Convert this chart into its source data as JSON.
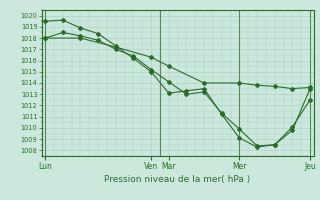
{
  "xlabel": "Pression niveau de la mer( hPa )",
  "bg_color": "#cce8dc",
  "grid_color": "#aad4c4",
  "line_color": "#2d6b2d",
  "vline_color": "#5a8a5a",
  "ylim": [
    1007.5,
    1020.5
  ],
  "xlim": [
    -0.1,
    7.6
  ],
  "yticks": [
    1008,
    1009,
    1010,
    1011,
    1012,
    1013,
    1014,
    1015,
    1016,
    1017,
    1018,
    1019,
    1020
  ],
  "day_labels": [
    "Lun",
    "Ven",
    "Mar",
    "Mer",
    "Jeu"
  ],
  "day_positions": [
    0.0,
    3.0,
    3.5,
    5.5,
    7.5
  ],
  "vlines": [
    0.0,
    3.25,
    5.5,
    7.5
  ],
  "series1_x": [
    0.0,
    0.5,
    1.0,
    1.5,
    2.0,
    2.5,
    3.0,
    3.5,
    4.0,
    4.5,
    5.0,
    5.5,
    6.0,
    6.5,
    7.0,
    7.5
  ],
  "series1_y": [
    1018.0,
    1018.5,
    1018.2,
    1017.8,
    1017.0,
    1016.4,
    1015.2,
    1014.1,
    1013.0,
    1013.2,
    1011.3,
    1009.9,
    1008.4,
    1008.5,
    1009.8,
    1013.5
  ],
  "series2_x": [
    0.0,
    0.5,
    1.0,
    1.5,
    2.0,
    2.5,
    3.0,
    3.5,
    4.0,
    4.5,
    5.0,
    5.5,
    6.0,
    6.5,
    7.0,
    7.5
  ],
  "series2_y": [
    1019.5,
    1019.6,
    1018.9,
    1018.4,
    1017.3,
    1016.2,
    1015.0,
    1013.1,
    1013.3,
    1013.5,
    1011.2,
    1009.1,
    1008.3,
    1008.5,
    1010.1,
    1012.5
  ],
  "series3_x": [
    0.0,
    1.0,
    2.0,
    3.0,
    3.5,
    4.5,
    5.5,
    6.0,
    6.5,
    7.0,
    7.5
  ],
  "series3_y": [
    1018.0,
    1018.0,
    1017.2,
    1016.3,
    1015.5,
    1014.0,
    1014.0,
    1013.8,
    1013.7,
    1013.5,
    1013.6
  ]
}
